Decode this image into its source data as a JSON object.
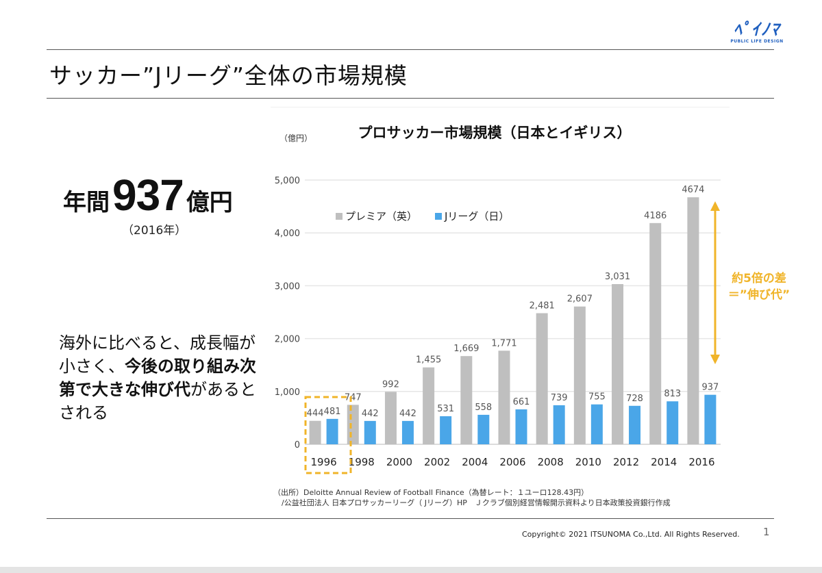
{
  "slide": {
    "title": "サッカー”Jリーグ”全体の市場規模",
    "logo": {
      "mark": "ﾍﾟｲﾉﾏ",
      "tagline": "PUBLIC LIFE DESIGN"
    },
    "headline": {
      "prefix": "年間",
      "value": "937",
      "suffix": "億円",
      "year_note": "（2016年）"
    },
    "description": {
      "parts": [
        {
          "text": "海外に比べると、成長幅が小さく、",
          "bold": false
        },
        {
          "text": "今後の取り組み次第で大きな伸び代",
          "bold": true
        },
        {
          "text": "があるとされる",
          "bold": false
        }
      ]
    },
    "source": {
      "line1": "（出所）Deloitte Annual Review of Football Finance（為替レート：１ユーロ128.43円）",
      "line2": "/公益社団法人 日本プロサッカーリーグ（ Jリーグ）HP　Ｊクラブ個別経営情報開示資料より日本政策投資銀行作成"
    },
    "copyright": "Copyright© 2021 ITSUNOMA Co.,Ltd.  All Rights Reserved.",
    "page_number": "1"
  },
  "chart_data": {
    "type": "bar",
    "title": "プロサッカー市場規模（日本とイギリス）",
    "ylabel": "（億円）",
    "xlabel": "",
    "ylim": [
      0,
      5000
    ],
    "yticks": [
      0,
      1000,
      2000,
      3000,
      4000,
      5000
    ],
    "ytick_labels": [
      "0",
      "1,000",
      "2,000",
      "3,000",
      "4,000",
      "5,000"
    ],
    "grid": true,
    "legend_position": "top-left",
    "categories": [
      "1996",
      "1998",
      "2000",
      "2002",
      "2004",
      "2006",
      "2008",
      "2010",
      "2012",
      "2014",
      "2016"
    ],
    "series": [
      {
        "name": "プレミア（英）",
        "color": "#bfbfbf",
        "values": [
          444,
          747,
          992,
          1455,
          1669,
          1771,
          2481,
          2607,
          3031,
          4186,
          4674
        ],
        "labels": [
          "444",
          "747",
          "992",
          "1,455",
          "1,669",
          "1,771",
          "2,481",
          "2,607",
          "3,031",
          "4186",
          "4674"
        ]
      },
      {
        "name": "Jリーグ（日）",
        "color": "#4aa6e8",
        "values": [
          481,
          442,
          442,
          531,
          558,
          661,
          739,
          755,
          728,
          813,
          937
        ],
        "labels": [
          "481",
          "442",
          "442",
          "531",
          "558",
          "661",
          "739",
          "755",
          "728",
          "813",
          "937"
        ]
      }
    ],
    "annotations": {
      "highlight_category": "1996",
      "gap_label_line1": "約5倍の差",
      "gap_label_line2": "＝”伸び代”",
      "gap_from": 4674,
      "gap_to": 937,
      "accent_color": "#f0b429"
    }
  }
}
